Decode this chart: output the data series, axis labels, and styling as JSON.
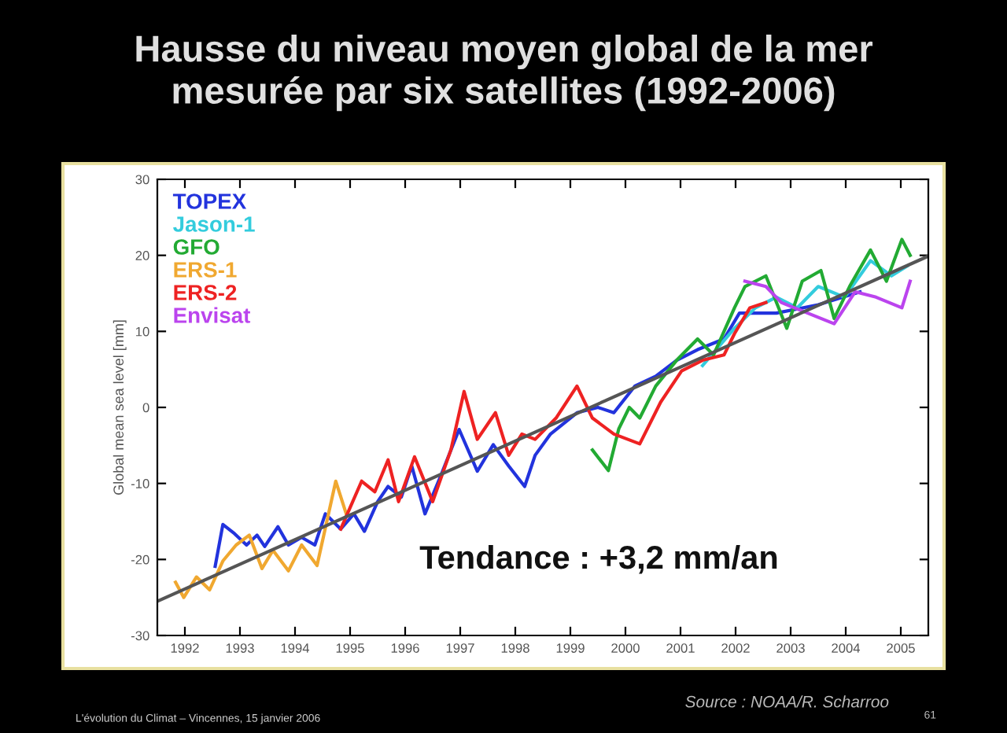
{
  "chart_data": {
    "type": "line",
    "title": "Hausse du niveau moyen global de la mer\nmesurée par six satellites (1992-2006)",
    "ylabel": "Global mean sea level [mm]",
    "xlim": [
      1992,
      2006
    ],
    "ylim": [
      -30,
      30
    ],
    "xticks": [
      {
        "value": 1992.5,
        "label": "1992"
      },
      {
        "value": 1993.5,
        "label": "1993"
      },
      {
        "value": 1994.5,
        "label": "1994"
      },
      {
        "value": 1995.5,
        "label": "1995"
      },
      {
        "value": 1996.5,
        "label": "1996"
      },
      {
        "value": 1997.5,
        "label": "1997"
      },
      {
        "value": 1998.5,
        "label": "1998"
      },
      {
        "value": 1999.5,
        "label": "1999"
      },
      {
        "value": 2000.5,
        "label": "2000"
      },
      {
        "value": 2001.5,
        "label": "2001"
      },
      {
        "value": 2002.5,
        "label": "2002"
      },
      {
        "value": 2003.5,
        "label": "2003"
      },
      {
        "value": 2004.5,
        "label": "2004"
      },
      {
        "value": 2005.5,
        "label": "2005"
      }
    ],
    "yticks": [
      -30,
      -20,
      -10,
      0,
      10,
      20,
      30
    ],
    "grid": false,
    "legend": "top left",
    "series": [
      {
        "name": "TOPEX",
        "color": "#2233dd",
        "x": [
          1993.05,
          1993.19,
          1993.4,
          1993.62,
          1993.81,
          1993.95,
          1994.19,
          1994.38,
          1994.62,
          1994.86,
          1995.05,
          1995.33,
          1995.57,
          1995.76,
          1996.0,
          1996.19,
          1996.43,
          1996.62,
          1996.86,
          1997.14,
          1997.48,
          1997.81,
          1998.1,
          1998.38,
          1998.67,
          1998.86,
          1999.14,
          1999.62,
          2000.0,
          2000.29,
          2000.67,
          2001.05,
          2001.43,
          2001.81,
          2002.29,
          2002.57,
          2003.24,
          2004.0,
          2004.76
        ],
        "values": [
          -20.9,
          -15.4,
          -16.6,
          -18.1,
          -16.8,
          -18.3,
          -15.7,
          -18.1,
          -17.1,
          -18.1,
          -14.0,
          -16.0,
          -14.0,
          -16.3,
          -12.4,
          -10.4,
          -11.8,
          -7.7,
          -14.0,
          -9.1,
          -2.9,
          -8.4,
          -4.9,
          -7.7,
          -10.4,
          -6.3,
          -3.5,
          -0.7,
          0,
          -0.7,
          2.8,
          4.1,
          6.2,
          7.6,
          9.0,
          12.4,
          12.4,
          13.5,
          15.2
        ]
      },
      {
        "name": "Jason-1",
        "color": "#33ccdd",
        "x": [
          2001.9,
          2002.48,
          2002.86,
          2003.24,
          2003.62,
          2004.0,
          2004.48,
          2004.95,
          2005.33,
          2005.62
        ],
        "values": [
          5.5,
          10.4,
          13.1,
          14.5,
          13.1,
          15.9,
          14.5,
          19.3,
          17.3,
          18.6
        ]
      },
      {
        "name": "GFO",
        "color": "#22aa33",
        "x": [
          1999.9,
          2000.19,
          2000.38,
          2000.57,
          2000.76,
          2001.05,
          2001.43,
          2001.81,
          2002.1,
          2002.48,
          2002.67,
          2003.05,
          2003.43,
          2003.71,
          2004.05,
          2004.29,
          2004.57,
          2004.95,
          2005.24,
          2005.52,
          2005.67
        ],
        "values": [
          -5.6,
          -8.3,
          -2.8,
          0,
          -1.4,
          2.8,
          6.2,
          9.0,
          6.9,
          13.1,
          15.9,
          17.3,
          10.4,
          16.6,
          18.0,
          11.7,
          15.9,
          20.7,
          16.6,
          22.1,
          20.0
        ]
      },
      {
        "name": "ERS-1",
        "color": "#f0a830",
        "x": [
          1992.33,
          1992.48,
          1992.71,
          1992.95,
          1993.19,
          1993.43,
          1993.67,
          1993.9,
          1994.1,
          1994.38,
          1994.62,
          1994.9,
          1995.24,
          1995.43
        ],
        "values": [
          -23.0,
          -25.0,
          -22.3,
          -24.0,
          -20.2,
          -18.1,
          -16.8,
          -21.2,
          -18.8,
          -21.5,
          -18.1,
          -20.8,
          -9.7,
          -14.0
        ]
      },
      {
        "name": "ERS-2",
        "color": "#ee2222",
        "x": [
          1995.33,
          1995.71,
          1995.95,
          1996.19,
          1996.38,
          1996.67,
          1997.0,
          1997.33,
          1997.57,
          1997.81,
          1998.14,
          1998.38,
          1998.62,
          1998.86,
          1999.24,
          1999.62,
          1999.9,
          2000.29,
          2000.76,
          2001.14,
          2001.52,
          2001.9,
          2002.29,
          2002.48,
          2002.76,
          2003.05
        ],
        "values": [
          -16.0,
          -9.7,
          -11.1,
          -6.9,
          -12.4,
          -6.5,
          -12.4,
          -5.6,
          2.1,
          -4.2,
          -0.7,
          -6.3,
          -3.5,
          -4.2,
          -1.4,
          2.8,
          -1.4,
          -3.5,
          -4.8,
          0.7,
          4.8,
          6.2,
          6.9,
          9.7,
          13.1,
          13.8
        ]
      },
      {
        "name": "Envisat",
        "color": "#bb44ee",
        "x": [
          2002.67,
          2003.05,
          2003.33,
          2003.81,
          2004.29,
          2004.67,
          2005.05,
          2005.52,
          2005.67
        ],
        "values": [
          16.6,
          15.9,
          13.8,
          12.4,
          11.0,
          15.2,
          14.5,
          13.1,
          16.6
        ]
      },
      {
        "color": "#555555",
        "x": [
          1992,
          2006
        ],
        "values": [
          -25.5,
          19.9
        ]
      }
    ],
    "annotations": [
      "Tendance : +3,2 mm/an",
      "L'évolution du Climat – Vincennes, 15 janvier 2006",
      "Source : NOAA/R. Scharroo",
      "61"
    ]
  }
}
